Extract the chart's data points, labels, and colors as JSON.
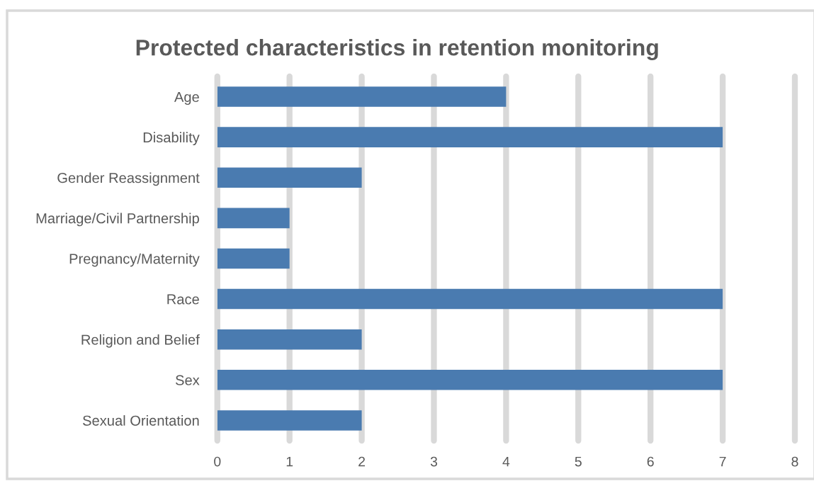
{
  "chart_data": {
    "type": "bar",
    "orientation": "horizontal",
    "title": "Protected characteristics in retention monitoring",
    "categories": [
      "Age",
      "Disability",
      "Gender Reassignment",
      "Marriage/Civil Partnership",
      "Pregnancy/Maternity",
      "Race",
      "Religion and Belief",
      "Sex",
      "Sexual Orientation"
    ],
    "values": [
      4,
      7,
      2,
      1,
      1,
      7,
      2,
      7,
      2
    ],
    "color": "#4a7bb0",
    "xlim": [
      0,
      8
    ],
    "xticks": [
      0,
      1,
      2,
      3,
      4,
      5,
      6,
      7,
      8
    ],
    "grid": "x"
  }
}
